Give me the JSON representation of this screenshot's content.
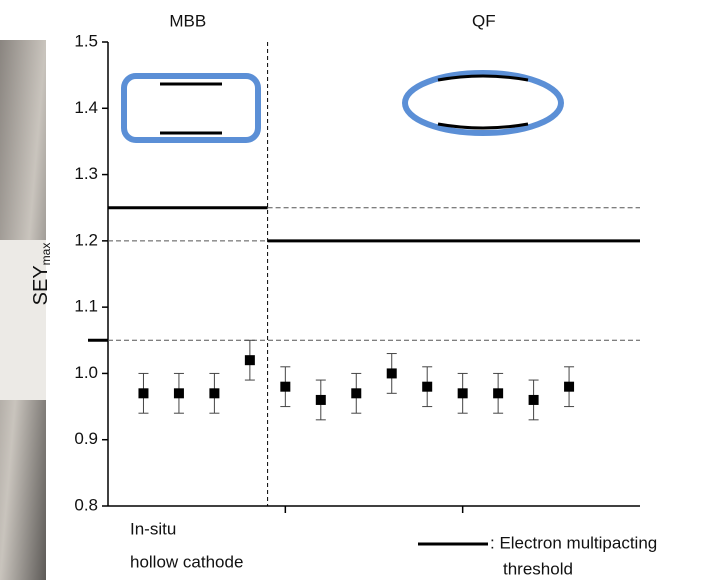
{
  "chart_data": {
    "type": "scatter",
    "regions": [
      {
        "name": "MBB",
        "threshold": 1.25
      },
      {
        "name": "QF",
        "threshold": 1.2
      }
    ],
    "divider_x": 4.5,
    "reference_line": 1.05,
    "y_label": "SEY",
    "y_label_sub": "max",
    "x": [
      1,
      2,
      3,
      4,
      5,
      6,
      7,
      8,
      9,
      10,
      11,
      12,
      13
    ],
    "values": [
      0.97,
      0.97,
      0.97,
      1.02,
      0.98,
      0.96,
      0.97,
      1.0,
      0.98,
      0.97,
      0.97,
      0.96,
      0.98
    ],
    "errors": [
      0.03,
      0.03,
      0.03,
      0.03,
      0.03,
      0.03,
      0.03,
      0.03,
      0.03,
      0.03,
      0.03,
      0.03,
      0.03
    ],
    "color": "#000000",
    "xlim": [
      0,
      15
    ],
    "xticks": [
      5,
      10
    ],
    "ylim": [
      0.8,
      1.5
    ],
    "yticks": [
      0.8,
      0.9,
      {
        "value": 1,
        "label": "1.0"
      },
      1.1,
      1.2,
      1.3,
      1.4,
      1.5
    ],
    "annotation_lines": [
      "In-situ",
      "hollow cathode"
    ],
    "legend_lines": [
      ": Electron multipacting",
      "threshold"
    ]
  }
}
